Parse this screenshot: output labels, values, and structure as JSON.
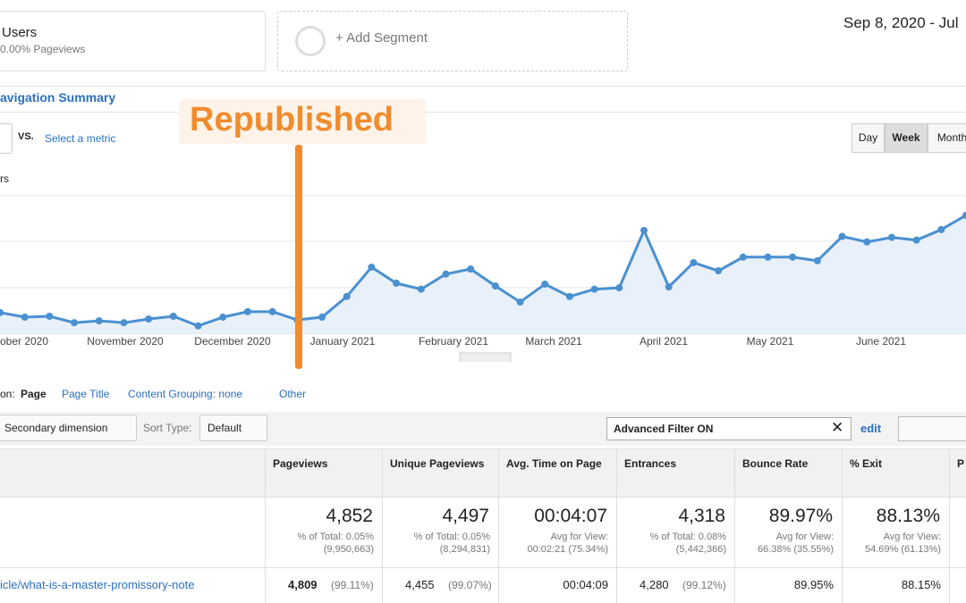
{
  "segment": {
    "name": "Users",
    "detail": "0.00% Pageviews"
  },
  "add_segment": "+ Add Segment",
  "date_range": "Sep 8, 2020 - Jul",
  "tab": "avigation Summary",
  "annotation": "Republished",
  "metric_compare": {
    "vs": "VS.",
    "select": "Select a metric"
  },
  "granularity": [
    "Day",
    "Week",
    "Month"
  ],
  "metric_label": "rs",
  "chart_data": {
    "type": "line",
    "color": "#4a90d0",
    "ylim": [
      0,
      3
    ],
    "values": [
      0.45,
      0.35,
      0.37,
      0.23,
      0.27,
      0.23,
      0.31,
      0.37,
      0.16,
      0.35,
      0.47,
      0.47,
      0.29,
      0.35,
      0.8,
      1.44,
      1.09,
      0.96,
      1.29,
      1.4,
      1.03,
      0.68,
      1.07,
      0.8,
      0.96,
      0.99,
      2.24,
      1.01,
      1.54,
      1.36,
      1.66,
      1.66,
      1.66,
      1.58,
      2.11,
      1.99,
      2.09,
      2.03,
      2.26,
      2.57
    ],
    "month_labels": [
      "ober 2020",
      "November 2020",
      "December 2020",
      "January 2021",
      "February 2021",
      "March 2021",
      "April 2021",
      "May 2021",
      "June 2021"
    ]
  },
  "dimension_bar": {
    "primary": "on:",
    "page": "Page",
    "page_title": "Page Title",
    "content_grouping": "Content Grouping: none",
    "other": "Other"
  },
  "toolbar": {
    "secondary": "Secondary dimension",
    "sort_type": "Sort Type:",
    "sort_value": "Default",
    "filter": "Advanced Filter ON",
    "edit": "edit"
  },
  "table": {
    "columns": [
      "Pageviews",
      "Unique Pageviews",
      "Avg. Time on Page",
      "Entrances",
      "Bounce Rate",
      "% Exit",
      "P"
    ],
    "totals": [
      [
        "4,852",
        "% of Total: 0.05%",
        "(9,950,663)"
      ],
      [
        "4,497",
        "% of Total: 0.05%",
        "(8,294,831)"
      ],
      [
        "00:04:07",
        "Avg for View:",
        "00:02:21 (75.34%)"
      ],
      [
        "4,318",
        "% of Total: 0.08%",
        "(5,442,366)"
      ],
      [
        "89.97%",
        "Avg for View:",
        "66.38% (35.55%)"
      ],
      [
        "88.13%",
        "Avg for View:",
        "54.69% (61.13%)"
      ]
    ],
    "row": {
      "page": "icle/what-is-a-master-promissory-note",
      "cells": [
        [
          "4,809",
          "(99.11%)"
        ],
        [
          "4,455",
          "(99.07%)"
        ],
        [
          "00:04:09"
        ],
        [
          "4,280",
          "(99.12%)"
        ],
        [
          "89.95%"
        ],
        [
          "88.15%"
        ]
      ]
    }
  }
}
